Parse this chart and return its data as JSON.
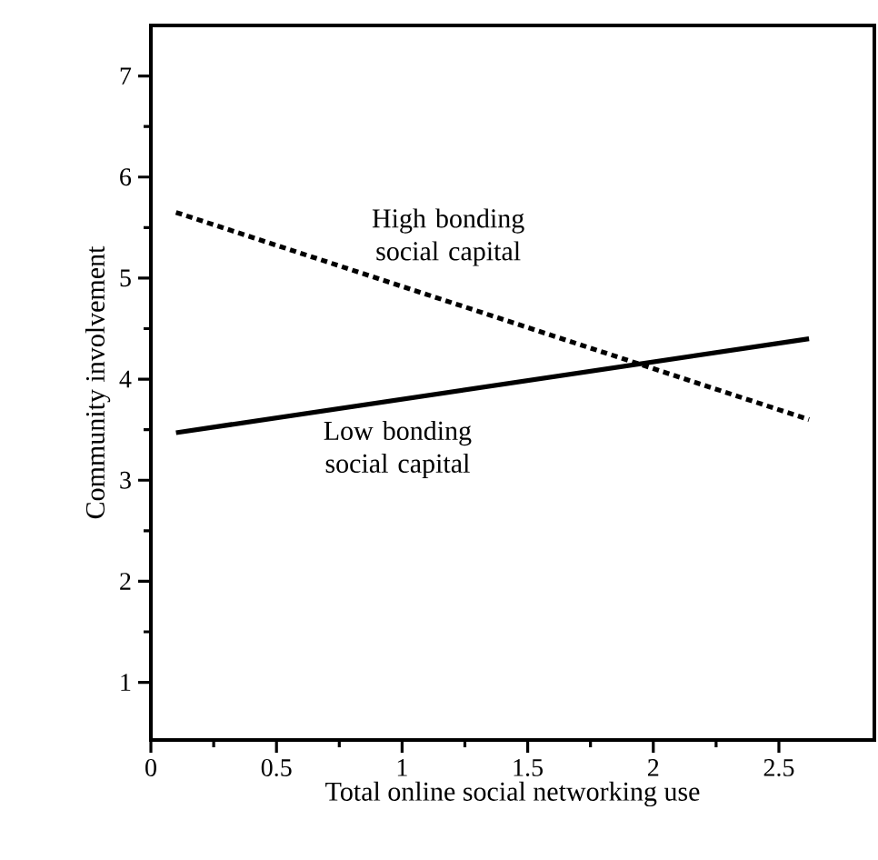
{
  "chart_data": {
    "type": "line",
    "xlabel": "Total online social networking use",
    "ylabel": "Community involvement",
    "xlim": [
      0,
      2.88
    ],
    "ylim": [
      0.43,
      7.5
    ],
    "xticks": [
      0,
      0.5,
      1,
      1.5,
      2,
      2.5
    ],
    "yticks": [
      1,
      2,
      3,
      4,
      5,
      6,
      7
    ],
    "x": [
      0.1,
      2.62
    ],
    "grid": false,
    "series": [
      {
        "name": "High bonding social capital",
        "color": "#000000",
        "line_style": "dotted",
        "values": [
          5.65,
          3.6
        ]
      },
      {
        "name": "Low bonding social capital",
        "color": "#000000",
        "line_style": "solid",
        "values": [
          3.47,
          4.4
        ]
      }
    ]
  }
}
